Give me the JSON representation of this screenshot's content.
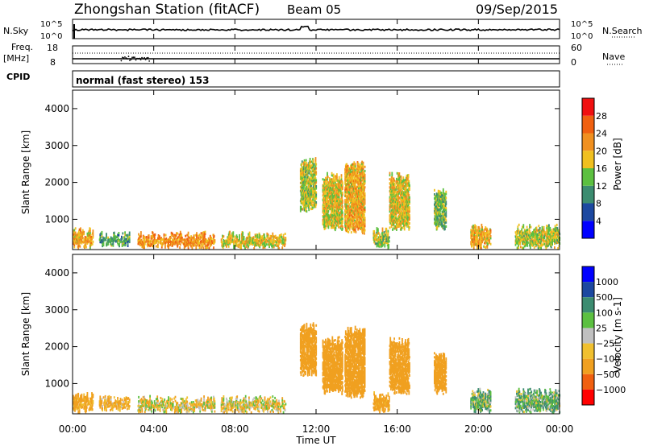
{
  "header": {
    "title": "Zhongshan Station (fitACF)",
    "beam": "Beam 05",
    "date": "09/Sep/2015"
  },
  "nsky_panel": {
    "left_label": "N.Sky",
    "right_label": "N.Search",
    "left_ticks": [
      "10^5",
      "10^0"
    ],
    "right_ticks": [
      "10^5",
      "10^0"
    ]
  },
  "freq_panel": {
    "left_label": "Freq.",
    "left_unit": "[MHz]",
    "right_label": "Nave",
    "left_ticks": [
      "18",
      "8"
    ],
    "right_ticks": [
      "60",
      "0"
    ]
  },
  "cpid": {
    "label": "CPID",
    "text": "normal (fast stereo) 153"
  },
  "colors": {
    "power_scale": [
      "#0000ff",
      "#1c48a0",
      "#3c8c70",
      "#5cc040",
      "#f0c020",
      "#f09020",
      "#f06010",
      "#f01010"
    ],
    "velocity_scale": [
      "#ff0000",
      "#f06010",
      "#f0a020",
      "#f0c030",
      "#c0c0c0",
      "#5cc040",
      "#3c8c70",
      "#1c48a0",
      "#0000ff"
    ]
  },
  "chart_data": [
    {
      "type": "heatmap",
      "name": "power",
      "ylabel": "Slant Range [km]",
      "y_ticks": [
        "1000",
        "2000",
        "3000",
        "4000"
      ],
      "ylim": [
        180,
        4500
      ],
      "colorbar_label": "Power [dB]",
      "colorbar_ticks": [
        "4",
        "8",
        "12",
        "16",
        "20",
        "24",
        "28"
      ],
      "colorbar_range": [
        0,
        32
      ],
      "bands": [
        {
          "t0": 0.0,
          "t1": 1.0,
          "r0": 200,
          "r1": 800,
          "level": 20
        },
        {
          "t0": 1.3,
          "t1": 2.8,
          "r0": 250,
          "r1": 700,
          "level": 12
        },
        {
          "t0": 3.2,
          "t1": 7.0,
          "r0": 200,
          "r1": 700,
          "level": 22
        },
        {
          "t0": 7.3,
          "t1": 10.5,
          "r0": 200,
          "r1": 700,
          "level": 18
        },
        {
          "t0": 11.2,
          "t1": 12.0,
          "r0": 1200,
          "r1": 2700,
          "level": 16
        },
        {
          "t0": 12.3,
          "t1": 13.3,
          "r0": 700,
          "r1": 2300,
          "level": 18
        },
        {
          "t0": 13.4,
          "t1": 14.4,
          "r0": 600,
          "r1": 2600,
          "level": 20
        },
        {
          "t0": 14.8,
          "t1": 15.6,
          "r0": 200,
          "r1": 800,
          "level": 16
        },
        {
          "t0": 15.6,
          "t1": 16.6,
          "r0": 700,
          "r1": 2300,
          "level": 18
        },
        {
          "t0": 17.8,
          "t1": 18.4,
          "r0": 700,
          "r1": 1900,
          "level": 14
        },
        {
          "t0": 19.6,
          "t1": 20.6,
          "r0": 200,
          "r1": 900,
          "level": 20
        },
        {
          "t0": 21.8,
          "t1": 24.0,
          "r0": 200,
          "r1": 900,
          "level": 16
        }
      ]
    },
    {
      "type": "heatmap",
      "name": "velocity",
      "xlabel": "Time UT",
      "ylabel": "Slant Range [km]",
      "x_ticks": [
        "00:00",
        "04:00",
        "08:00",
        "12:00",
        "16:00",
        "20:00",
        "00:00"
      ],
      "y_ticks": [
        "1000",
        "2000",
        "3000",
        "4000"
      ],
      "ylim": [
        180,
        4500
      ],
      "colorbar_label": "Velocity [m s-1]",
      "colorbar_ticks": [
        "1000",
        "500",
        "100",
        "25",
        "−25",
        "−100",
        "−500",
        "−1000"
      ],
      "bands": [
        {
          "t0": 0.0,
          "t1": 1.0,
          "r0": 200,
          "r1": 800,
          "level": -200
        },
        {
          "t0": 1.3,
          "t1": 2.8,
          "r0": 250,
          "r1": 700,
          "level": -150
        },
        {
          "t0": 3.2,
          "t1": 7.0,
          "r0": 200,
          "r1": 700,
          "level": -50
        },
        {
          "t0": 7.3,
          "t1": 10.5,
          "r0": 200,
          "r1": 700,
          "level": -60
        },
        {
          "t0": 11.2,
          "t1": 12.0,
          "r0": 1200,
          "r1": 2700,
          "level": -300
        },
        {
          "t0": 12.3,
          "t1": 13.3,
          "r0": 700,
          "r1": 2300,
          "level": -300
        },
        {
          "t0": 13.4,
          "t1": 14.4,
          "r0": 600,
          "r1": 2600,
          "level": -300
        },
        {
          "t0": 14.8,
          "t1": 15.6,
          "r0": 200,
          "r1": 800,
          "level": -200
        },
        {
          "t0": 15.6,
          "t1": 16.6,
          "r0": 700,
          "r1": 2300,
          "level": -300
        },
        {
          "t0": 17.8,
          "t1": 18.4,
          "r0": 700,
          "r1": 1900,
          "level": -250
        },
        {
          "t0": 19.6,
          "t1": 20.6,
          "r0": 200,
          "r1": 900,
          "level": 80
        },
        {
          "t0": 21.8,
          "t1": 24.0,
          "r0": 200,
          "r1": 900,
          "level": 90
        }
      ]
    }
  ]
}
